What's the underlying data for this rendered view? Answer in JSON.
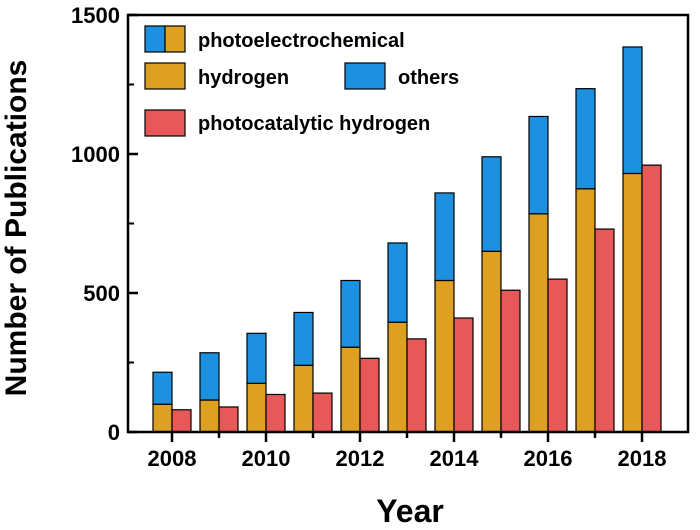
{
  "chart_data": {
    "type": "bar",
    "xlabel": "Year",
    "ylabel": "Number of Publications",
    "ylim": [
      0,
      1500
    ],
    "yticks": [
      0,
      500,
      1000,
      1500
    ],
    "x": [
      2008,
      2009,
      2010,
      2011,
      2012,
      2013,
      2014,
      2015,
      2016,
      2017,
      2018
    ],
    "xtick_labels": [
      "2008",
      "2010",
      "2012",
      "2014",
      "2016",
      "2018"
    ],
    "stacked_series": [
      {
        "name": "hydrogen",
        "values": [
          100,
          115,
          175,
          240,
          305,
          395,
          545,
          650,
          785,
          875,
          930
        ]
      },
      {
        "name": "others",
        "values": [
          115,
          170,
          180,
          190,
          240,
          285,
          315,
          340,
          350,
          360,
          455
        ]
      }
    ],
    "combined_legend_label": "photoelectrochemical",
    "side_series": {
      "name": "photocatalytic hydrogen",
      "values": [
        80,
        90,
        135,
        140,
        265,
        335,
        410,
        510,
        550,
        730,
        960
      ]
    },
    "colors": {
      "hydrogen": "#DDA020",
      "others": "#1E90E0",
      "photocatalytic hydrogen": "#E85858"
    },
    "legend_position": "top-left",
    "grid": false
  }
}
